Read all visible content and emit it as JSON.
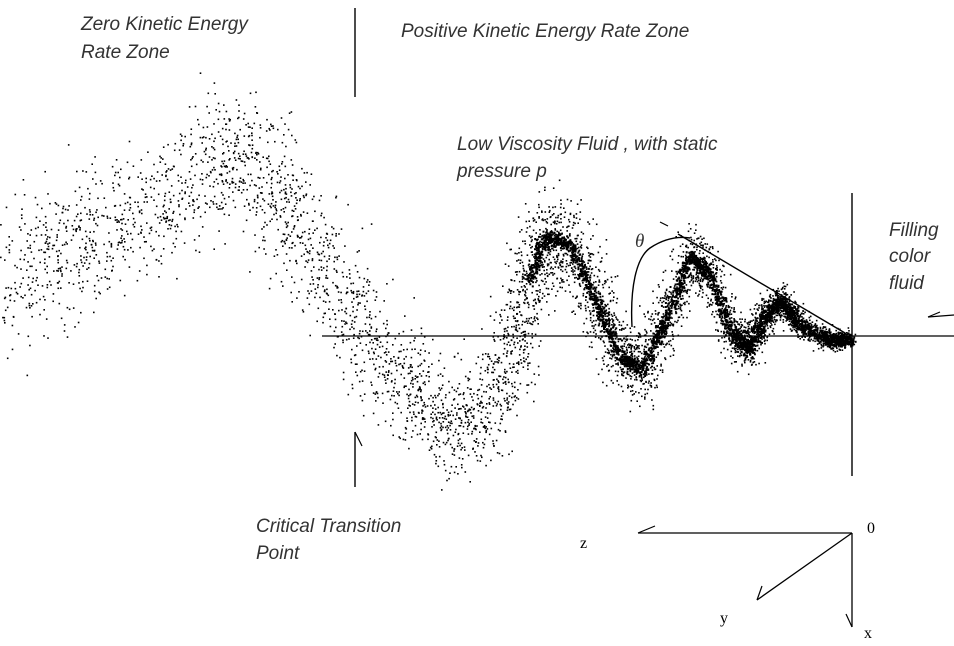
{
  "labels": {
    "zero_zone": [
      "Zero Kinetic Energy",
      "Rate Zone"
    ],
    "positive_zone": "Positive Kinetic Energy Rate Zone",
    "fluid": [
      "Low Viscosity Fluid , with static",
      "pressure p"
    ],
    "filling": [
      "Filling",
      "color",
      "fluid"
    ],
    "critical": [
      "Critical Transition",
      "Point"
    ],
    "theta": "θ"
  },
  "axes": {
    "origin": "0",
    "z": "z",
    "y": "y",
    "x": "x"
  },
  "colors": {
    "ink": "#000000",
    "text": "#333333",
    "background": "#ffffff"
  }
}
